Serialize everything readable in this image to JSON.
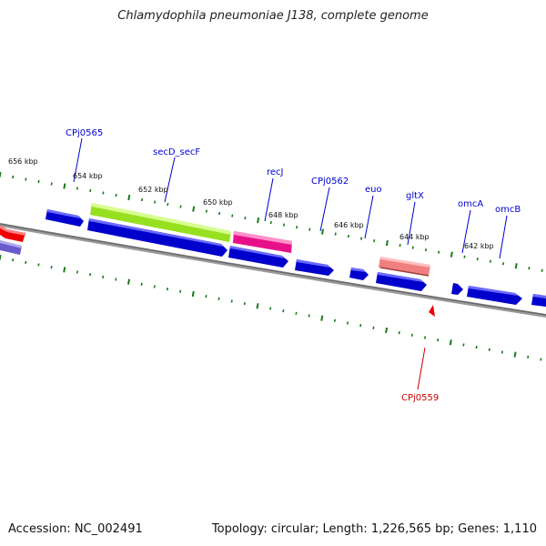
{
  "header": {
    "title": "Chlamydophila pneumoniae J138, complete genome"
  },
  "footer": {
    "accession": "Accession: NC_002491",
    "summary": "Topology: circular; Length: 1,226,565 bp; Genes: 1,110"
  },
  "ticks": [
    {
      "label": "656 kbp"
    },
    {
      "label": "654 kbp"
    },
    {
      "label": "652 kbp"
    },
    {
      "label": "650 kbp"
    },
    {
      "label": "648 kbp"
    },
    {
      "label": "646 kbp"
    },
    {
      "label": "644 kbp"
    },
    {
      "label": "642 kbp"
    }
  ],
  "gene_labels": [
    {
      "name": "CPj0565",
      "color": "#0000cc"
    },
    {
      "name": "secD_secF",
      "color": "#0000cc"
    },
    {
      "name": "recJ",
      "color": "#0000cc"
    },
    {
      "name": "CPj0562",
      "color": "#0000cc"
    },
    {
      "name": "euo",
      "color": "#0000cc"
    },
    {
      "name": "gltX",
      "color": "#0000cc"
    },
    {
      "name": "omcA",
      "color": "#0000cc"
    },
    {
      "name": "omcB",
      "color": "#0000cc"
    },
    {
      "name": "CPj0559",
      "color": "#cc0000"
    }
  ],
  "colors": {
    "forward_gene": "#0000dd",
    "lavender_gene": "#7a6ad8",
    "red_gene": "#ee0000",
    "green_gene": "#a8ee30",
    "magenta_gene": "#ee1a8a",
    "pink_gene": "#f08080",
    "backbone": "#808080",
    "tick": "#1a7a1a"
  }
}
